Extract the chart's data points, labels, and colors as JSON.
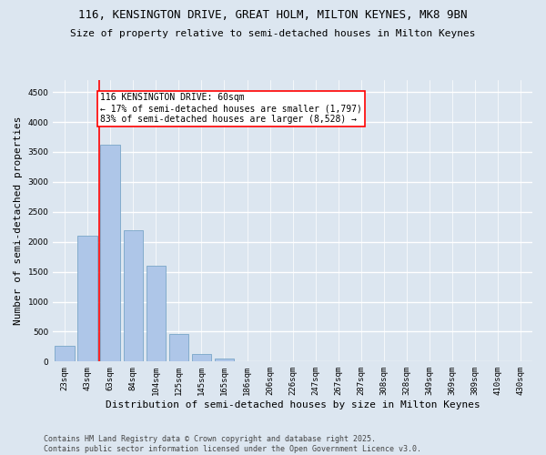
{
  "title_line1": "116, KENSINGTON DRIVE, GREAT HOLM, MILTON KEYNES, MK8 9BN",
  "title_line2": "Size of property relative to semi-detached houses in Milton Keynes",
  "xlabel": "Distribution of semi-detached houses by size in Milton Keynes",
  "ylabel": "Number of semi-detached properties",
  "categories": [
    "23sqm",
    "43sqm",
    "63sqm",
    "84sqm",
    "104sqm",
    "125sqm",
    "145sqm",
    "165sqm",
    "186sqm",
    "206sqm",
    "226sqm",
    "247sqm",
    "267sqm",
    "287sqm",
    "308sqm",
    "328sqm",
    "349sqm",
    "369sqm",
    "389sqm",
    "410sqm",
    "430sqm"
  ],
  "values": [
    260,
    2100,
    3620,
    2200,
    1600,
    460,
    130,
    50,
    10,
    0,
    0,
    0,
    0,
    0,
    0,
    0,
    0,
    0,
    0,
    0,
    0
  ],
  "bar_color": "#aec6e8",
  "bar_edge_color": "#6a9cc0",
  "highlight_line_color": "red",
  "annotation_text": "116 KENSINGTON DRIVE: 60sqm\n← 17% of semi-detached houses are smaller (1,797)\n83% of semi-detached houses are larger (8,528) →",
  "annotation_box_facecolor": "white",
  "annotation_box_edgecolor": "red",
  "ylim": [
    0,
    4700
  ],
  "yticks": [
    0,
    500,
    1000,
    1500,
    2000,
    2500,
    3000,
    3500,
    4000,
    4500
  ],
  "background_color": "#dce6f0",
  "grid_color": "white",
  "footer_text": "Contains HM Land Registry data © Crown copyright and database right 2025.\nContains public sector information licensed under the Open Government Licence v3.0.",
  "title_fontsize": 9,
  "subtitle_fontsize": 8,
  "axis_label_fontsize": 8,
  "tick_fontsize": 6.5,
  "annotation_fontsize": 7,
  "footer_fontsize": 6
}
